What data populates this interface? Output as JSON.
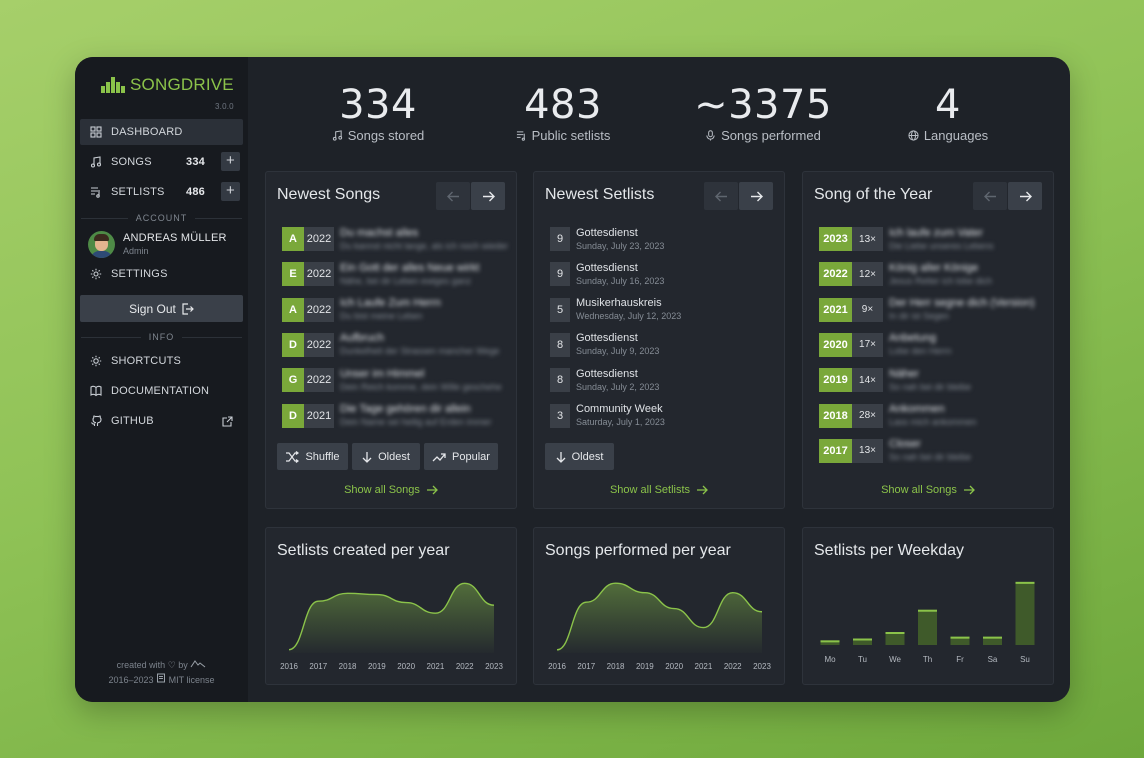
{
  "logo": {
    "name": "SONGDRIVE",
    "version": "3.0.0",
    "color": "#8bc34a"
  },
  "sidebar": {
    "nav": [
      {
        "label": "DASHBOARD",
        "icon": "grid-icon"
      },
      {
        "label": "SONGS",
        "count": "334",
        "icon": "music-note-icon"
      },
      {
        "label": "SETLISTS",
        "count": "486",
        "icon": "playlist-icon"
      }
    ],
    "account_title": "ACCOUNT",
    "user": {
      "name": "ANDREAS MÜLLER",
      "role": "Admin"
    },
    "settings_label": "SETTINGS",
    "signout_label": "Sign Out",
    "info_title": "INFO",
    "info": [
      {
        "label": "SHORTCUTS",
        "icon": "bulb-icon"
      },
      {
        "label": "DOCUMENTATION",
        "icon": "book-icon"
      },
      {
        "label": "GITHUB",
        "icon": "github-icon"
      }
    ],
    "footer": {
      "created_with": "created with",
      "by": "by",
      "years": "2016–2023",
      "license": "MIT license"
    }
  },
  "stats": [
    {
      "value": "334",
      "label": "Songs stored",
      "icon": "music-note-icon"
    },
    {
      "value": "483",
      "label": "Public setlists",
      "icon": "playlist-icon"
    },
    {
      "value": "~3375",
      "label": "Songs performed",
      "icon": "microphone-icon"
    },
    {
      "value": "4",
      "label": "Languages",
      "icon": "globe-icon"
    }
  ],
  "newest_songs": {
    "title": "Newest Songs",
    "rows": [
      {
        "key": "A",
        "year": "2022",
        "title": "Du machst alles",
        "sub": "Du kannst nicht lange, als ich noch wieder"
      },
      {
        "key": "E",
        "year": "2022",
        "title": "Ein Gott der alles Neue wirkt",
        "sub": "Nähe, bei dir Leben ewiges ganz"
      },
      {
        "key": "A",
        "year": "2022",
        "title": "Ich Laufe Zum Herrn",
        "sub": "Du bist meine Leben"
      },
      {
        "key": "D",
        "year": "2022",
        "title": "Aufbruch",
        "sub": "Dunkelheit der Strassen mancher Wege"
      },
      {
        "key": "G",
        "year": "2022",
        "title": "Unser im Himmel",
        "sub": "Dein Reich komme, dein Wille geschehe"
      },
      {
        "key": "D",
        "year": "2021",
        "title": "Die Tage gehören dir allein",
        "sub": "Dein Name sei heilig auf Erden immer"
      }
    ],
    "buttons": [
      "Shuffle",
      "Oldest",
      "Popular"
    ],
    "link": "Show all Songs"
  },
  "newest_setlists": {
    "title": "Newest Setlists",
    "rows": [
      {
        "count": "9",
        "title": "Gottesdienst",
        "date": "Sunday, July 23, 2023"
      },
      {
        "count": "9",
        "title": "Gottesdienst",
        "date": "Sunday, July 16, 2023"
      },
      {
        "count": "5",
        "title": "Musikerhauskreis",
        "date": "Wednesday, July 12, 2023"
      },
      {
        "count": "8",
        "title": "Gottesdienst",
        "date": "Sunday, July 9, 2023"
      },
      {
        "count": "8",
        "title": "Gottesdienst",
        "date": "Sunday, July 2, 2023"
      },
      {
        "count": "3",
        "title": "Community Week",
        "date": "Saturday, July 1, 2023"
      }
    ],
    "buttons": [
      "Oldest"
    ],
    "link": "Show all Setlists"
  },
  "song_of_year": {
    "title": "Song of the Year",
    "rows": [
      {
        "year": "2023",
        "count": "13×",
        "title": "Ich laufe zum Vater",
        "sub": "Die Liebe unseres Lebens"
      },
      {
        "year": "2022",
        "count": "12×",
        "title": "König aller Könige",
        "sub": "Jesus Retter ich lobe dich"
      },
      {
        "year": "2021",
        "count": "9×",
        "title": "Der Herr segne dich (Version)",
        "sub": "In dir ist Segen"
      },
      {
        "year": "2020",
        "count": "17×",
        "title": "Anbetung",
        "sub": "Lobe den Herrn"
      },
      {
        "year": "2019",
        "count": "14×",
        "title": "Näher",
        "sub": "So nah bei dir bleibe"
      },
      {
        "year": "2018",
        "count": "28×",
        "title": "Ankommen",
        "sub": "Lass mich ankommen"
      },
      {
        "year": "2017",
        "count": "13×",
        "title": "Closer",
        "sub": "So nah bei dir bleibe"
      }
    ],
    "link": "Show all Songs"
  },
  "chart_data": [
    {
      "type": "area",
      "title": "Setlists created per year",
      "categories": [
        "2016",
        "2017",
        "2018",
        "2019",
        "2020",
        "2021",
        "2022",
        "2023"
      ],
      "values": [
        5,
        78,
        90,
        88,
        76,
        60,
        105,
        72
      ],
      "ylim": [
        0,
        110
      ],
      "grid": false,
      "legend": "none"
    },
    {
      "type": "area",
      "title": "Songs performed per year",
      "categories": [
        "2016",
        "2017",
        "2018",
        "2019",
        "2020",
        "2021",
        "2022",
        "2023"
      ],
      "values": [
        5,
        80,
        110,
        95,
        70,
        40,
        95,
        65
      ],
      "ylim": [
        0,
        115
      ],
      "grid": false,
      "legend": "none"
    },
    {
      "type": "bar",
      "title": "Setlists per Weekday",
      "categories": [
        "Mo",
        "Tu",
        "We",
        "Th",
        "Fr",
        "Sa",
        "Su"
      ],
      "values": [
        5,
        7,
        14,
        38,
        9,
        9,
        68
      ],
      "ylim": [
        0,
        70
      ],
      "grid": false,
      "legend": "none"
    }
  ],
  "colors": {
    "accent": "#8bc34a",
    "key_badge": "#7aa83a",
    "bg": "#1e2228",
    "sidebar": "#171a1f"
  }
}
